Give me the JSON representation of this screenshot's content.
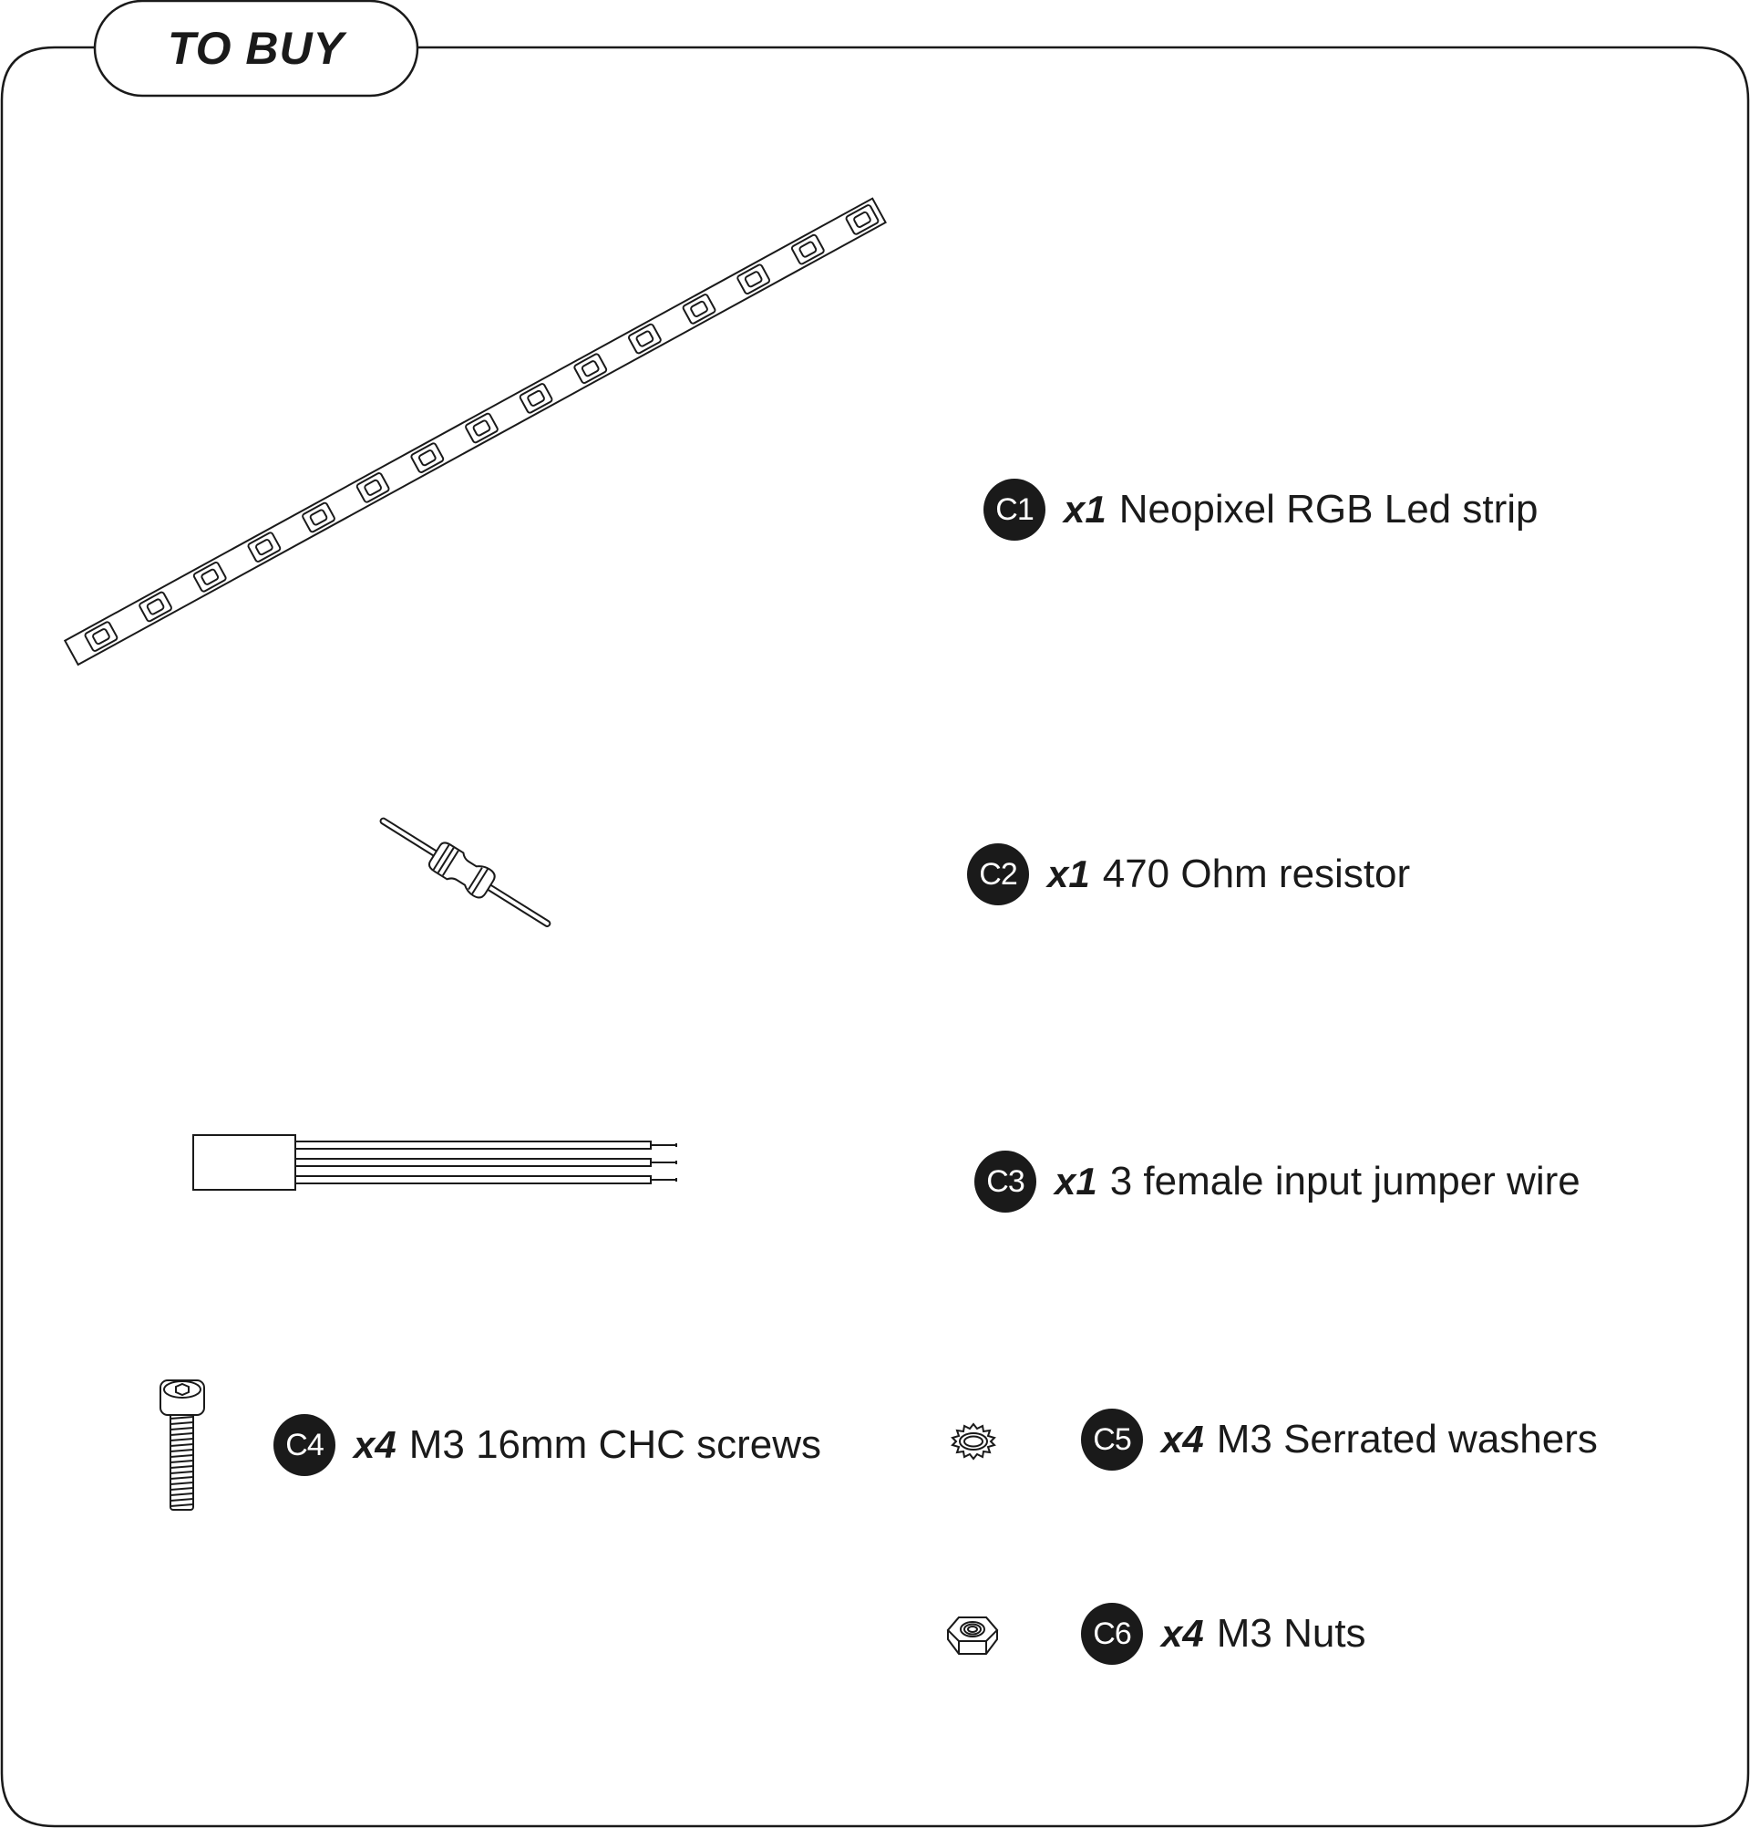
{
  "section": {
    "title": "TO BUY"
  },
  "parts": [
    {
      "code": "C1",
      "quantity": "x1",
      "description": "Neopixel RGB Led strip",
      "icon": "led-strip-icon"
    },
    {
      "code": "C2",
      "quantity": "x1",
      "description": "470 Ohm resistor",
      "icon": "resistor-icon"
    },
    {
      "code": "C3",
      "quantity": "x1",
      "description": "3 female input jumper wire",
      "icon": "jumper-wire-icon"
    },
    {
      "code": "C4",
      "quantity": "x4",
      "description": "M3 16mm CHC screws",
      "icon": "screw-icon"
    },
    {
      "code": "C5",
      "quantity": "x4",
      "description": "M3 Serrated washers",
      "icon": "serrated-washer-icon"
    },
    {
      "code": "C6",
      "quantity": "x4",
      "description": "M3 Nuts",
      "icon": "hex-nut-icon"
    }
  ]
}
